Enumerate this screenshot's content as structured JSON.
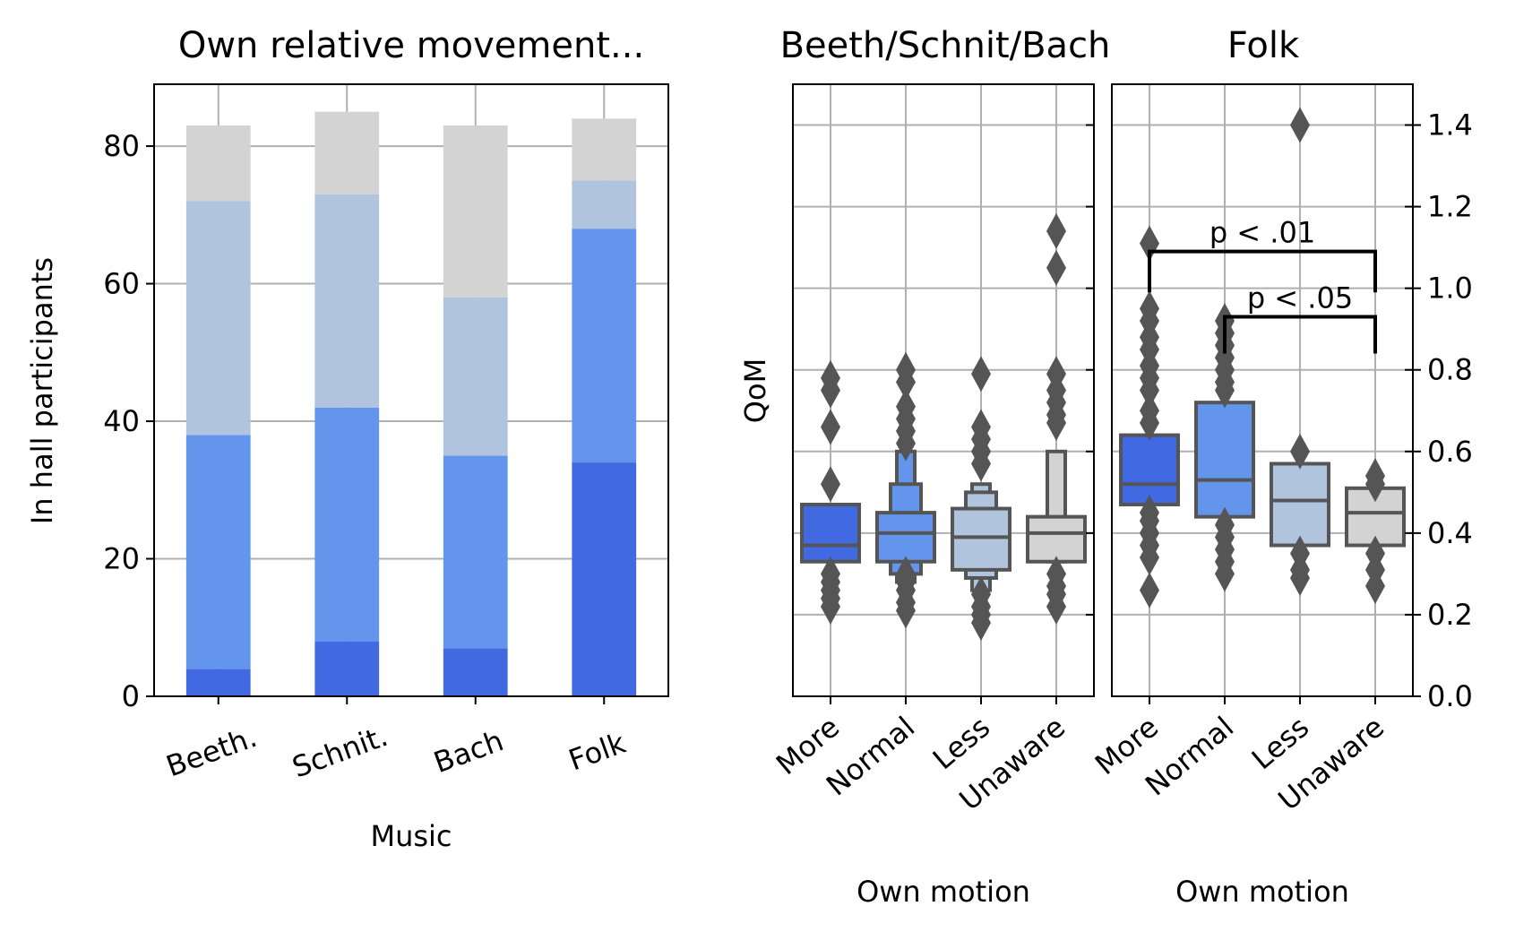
{
  "colors": {
    "more": "#4169e1",
    "normal": "#6495ed",
    "less": "#b0c4de",
    "unaware": "#d3d3d3",
    "box_edge": "#555555",
    "grid": "#b0b0b0"
  },
  "chart_data": [
    {
      "type": "bar",
      "stacked": true,
      "title": "Own relative movement...",
      "xlabel": "Music",
      "ylabel": "In hall participants",
      "categories": [
        "Beeth.",
        "Schnit.",
        "Bach",
        "Folk"
      ],
      "series": [
        {
          "key": "more",
          "values": [
            4,
            8,
            7,
            34
          ]
        },
        {
          "key": "normal",
          "values": [
            34,
            34,
            28,
            34
          ]
        },
        {
          "key": "less",
          "values": [
            34,
            31,
            23,
            7
          ]
        },
        {
          "key": "unaware",
          "values": [
            11,
            12,
            25,
            9
          ]
        }
      ],
      "ylim": [
        0,
        89
      ],
      "yticks": [
        "0",
        "20",
        "40",
        "60",
        "80"
      ],
      "ytick_values": [
        0,
        20,
        40,
        60,
        80
      ],
      "grid": true
    },
    {
      "type": "boxen",
      "title": "Beeth/Schnit/Bach",
      "xlabel": "Own motion",
      "ylabel": "QoM",
      "categories": [
        "More",
        "Normal",
        "Less",
        "Unaware"
      ],
      "ylim": [
        0,
        1.5
      ],
      "grid": true,
      "boxes": [
        {
          "key": "more",
          "median": 0.37,
          "q1": 0.33,
          "q3": 0.47,
          "inner": [],
          "outliers": [
            0.78,
            0.75,
            0.66,
            0.52,
            0.3,
            0.28,
            0.26,
            0.24,
            0.22
          ]
        },
        {
          "key": "normal",
          "median": 0.4,
          "q1": 0.33,
          "q3": 0.45,
          "inner": [
            [
              0.3,
              0.52
            ],
            [
              0.28,
              0.6
            ]
          ],
          "outliers": [
            0.8,
            0.77,
            0.71,
            0.68,
            0.65,
            0.62,
            0.3,
            0.28,
            0.26,
            0.23,
            0.21
          ]
        },
        {
          "key": "less",
          "median": 0.39,
          "q1": 0.31,
          "q3": 0.46,
          "inner": [
            [
              0.29,
              0.5
            ],
            [
              0.26,
              0.52
            ]
          ],
          "outliers": [
            0.79,
            0.66,
            0.63,
            0.6,
            0.57,
            0.25,
            0.22,
            0.2,
            0.18
          ]
        },
        {
          "key": "unaware",
          "median": 0.4,
          "q1": 0.33,
          "q3": 0.44,
          "inner": [
            [
              0.33,
              0.6
            ]
          ],
          "outliers": [
            1.14,
            1.05,
            0.79,
            0.75,
            0.72,
            0.69,
            0.67,
            0.3,
            0.27,
            0.25,
            0.22
          ]
        }
      ]
    },
    {
      "type": "boxen",
      "title": "Folk",
      "xlabel": "Own motion",
      "ylim": [
        0,
        1.5
      ],
      "yticks": [
        "0.0",
        "0.2",
        "0.4",
        "0.6",
        "0.8",
        "1.0",
        "1.2",
        "1.4"
      ],
      "ytick_values": [
        0,
        0.2,
        0.4,
        0.6,
        0.8,
        1.0,
        1.2,
        1.4
      ],
      "grid": true,
      "categories": [
        "More",
        "Normal",
        "Less",
        "Unaware"
      ],
      "boxes": [
        {
          "key": "more",
          "median": 0.52,
          "q1": 0.47,
          "q3": 0.64,
          "inner": [],
          "outliers": [
            1.11,
            0.95,
            0.92,
            0.88,
            0.85,
            0.81,
            0.78,
            0.75,
            0.7,
            0.67,
            0.45,
            0.43,
            0.4,
            0.37,
            0.34,
            0.26
          ]
        },
        {
          "key": "normal",
          "median": 0.53,
          "q1": 0.44,
          "q3": 0.72,
          "inner": [],
          "outliers": [
            0.92,
            0.89,
            0.86,
            0.83,
            0.8,
            0.77,
            0.75,
            0.42,
            0.39,
            0.36,
            0.33,
            0.3
          ]
        },
        {
          "key": "less",
          "median": 0.48,
          "q1": 0.37,
          "q3": 0.57,
          "inner": [],
          "outliers": [
            1.4,
            0.6,
            0.35,
            0.31,
            0.29
          ]
        },
        {
          "key": "unaware",
          "median": 0.45,
          "q1": 0.37,
          "q3": 0.51,
          "inner": [],
          "outliers": [
            0.54,
            0.52,
            0.35,
            0.31,
            0.27
          ]
        }
      ],
      "annotations": [
        {
          "text": "p < .01",
          "from": 0,
          "to": 3,
          "y": 1.09,
          "y_left_end": 0.99,
          "y_right_end": 0.99
        },
        {
          "text": "p < .05",
          "from": 1,
          "to": 3,
          "y": 0.93,
          "y_left_end": 0.84,
          "y_right_end": 0.84
        }
      ]
    }
  ]
}
